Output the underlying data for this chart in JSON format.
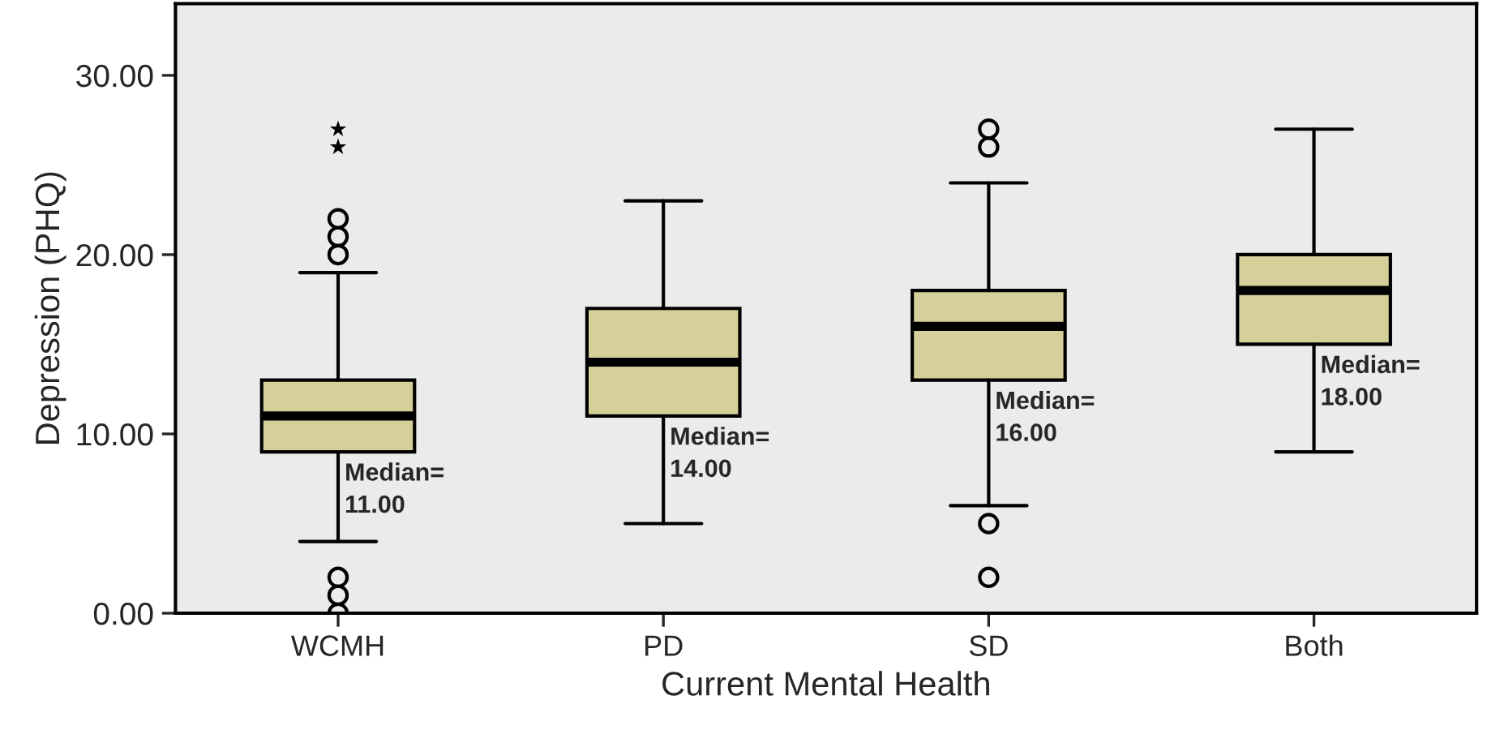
{
  "chart_data": {
    "type": "box",
    "xlabel": "Current Mental Health",
    "ylabel": "Depression (PHQ)",
    "categories": [
      "WCMH",
      "PD",
      "SD",
      "Both"
    ],
    "boxes": [
      {
        "low": 4,
        "q1": 9,
        "median": 11,
        "q3": 13,
        "high": 19,
        "outliers": [
          0,
          1,
          2,
          20,
          21,
          22
        ]
      },
      {
        "low": 5,
        "q1": 11,
        "median": 14,
        "q3": 17,
        "high": 23
      },
      {
        "low": 6,
        "q1": 13,
        "median": 16,
        "q3": 18,
        "high": 24,
        "outliers": [
          2,
          5,
          26,
          27
        ]
      },
      {
        "low": 9,
        "q1": 15,
        "median": 18,
        "q3": 20,
        "high": 27
      }
    ],
    "series": [
      {
        "type": "scatter",
        "x": [
          "WCMH",
          "WCMH"
        ],
        "values": [
          26,
          27
        ],
        "color": "#000000",
        "marker": "star"
      }
    ],
    "color": "#d5cf9a",
    "ylim": [
      0,
      34
    ],
    "yticks": [
      {
        "value": 0,
        "label": "0.00"
      },
      {
        "value": 10,
        "label": "10.00"
      },
      {
        "value": 20,
        "label": "20.00"
      },
      {
        "value": 30,
        "label": "30.00"
      }
    ],
    "annotations": [
      "Median=\n11.00",
      "Median=\n14.00",
      "Median=\n16.00",
      "Median=\n18.00"
    ],
    "grid": false,
    "legend": false
  }
}
